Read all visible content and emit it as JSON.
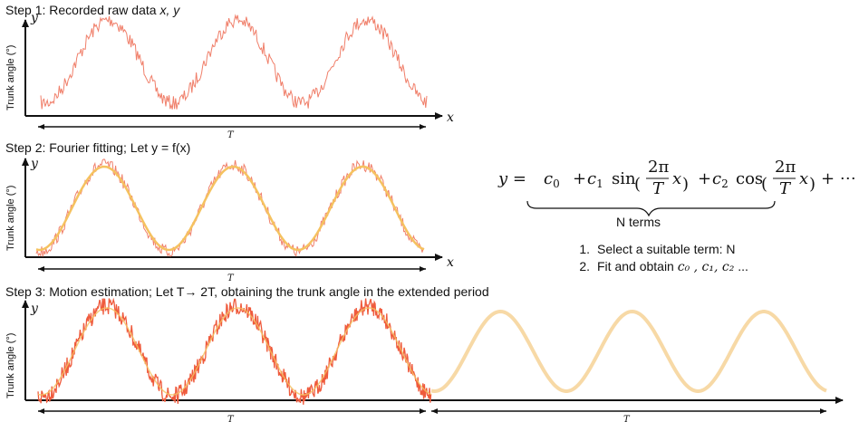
{
  "steps": [
    {
      "title_prefix": "Step 1: Recorded raw data ",
      "title_vars": "x, y",
      "ylabel": "Trunk angle (°)",
      "y_axis": "y",
      "x_axis": "x",
      "period": "T"
    },
    {
      "title": "Step 2: Fourier fitting; Let y = f(x)",
      "ylabel": "Trunk angle (°)",
      "y_axis": "y",
      "x_axis": "x",
      "period": "T"
    },
    {
      "title": "Step 3: Motion estimation; Let T→ 2T, obtaining the trunk angle in the extended period",
      "ylabel": "Trunk angle (°)",
      "y_axis": "y",
      "period_1": "T",
      "period_2": "T"
    }
  ],
  "equation": {
    "lhs": "y =",
    "c0": "c",
    "c0_sub": "0",
    "plus1": "+",
    "c1": "c",
    "c1_sub": "1",
    "sin": "sin",
    "cos": "cos",
    "c2": "c",
    "c2_sub": "2",
    "two_pi": "2π",
    "T": "T",
    "x": "x",
    "plus2": "+",
    "plus3": "+ ⋯",
    "brace_label": "N terms"
  },
  "procedure": {
    "item1_num": "1.",
    "item1": "Select a suitable term: N",
    "item2_num": "2.",
    "item2_prefix": "Fit and obtain ",
    "item2_coefs": "c₀ , c₁, c₂",
    "item2_suffix": " ..."
  },
  "colors": {
    "raw": "#f07f6a",
    "raw_dense": "#ef5a3c",
    "fit": "#f5c260",
    "extended": "#f7d9a6"
  }
}
